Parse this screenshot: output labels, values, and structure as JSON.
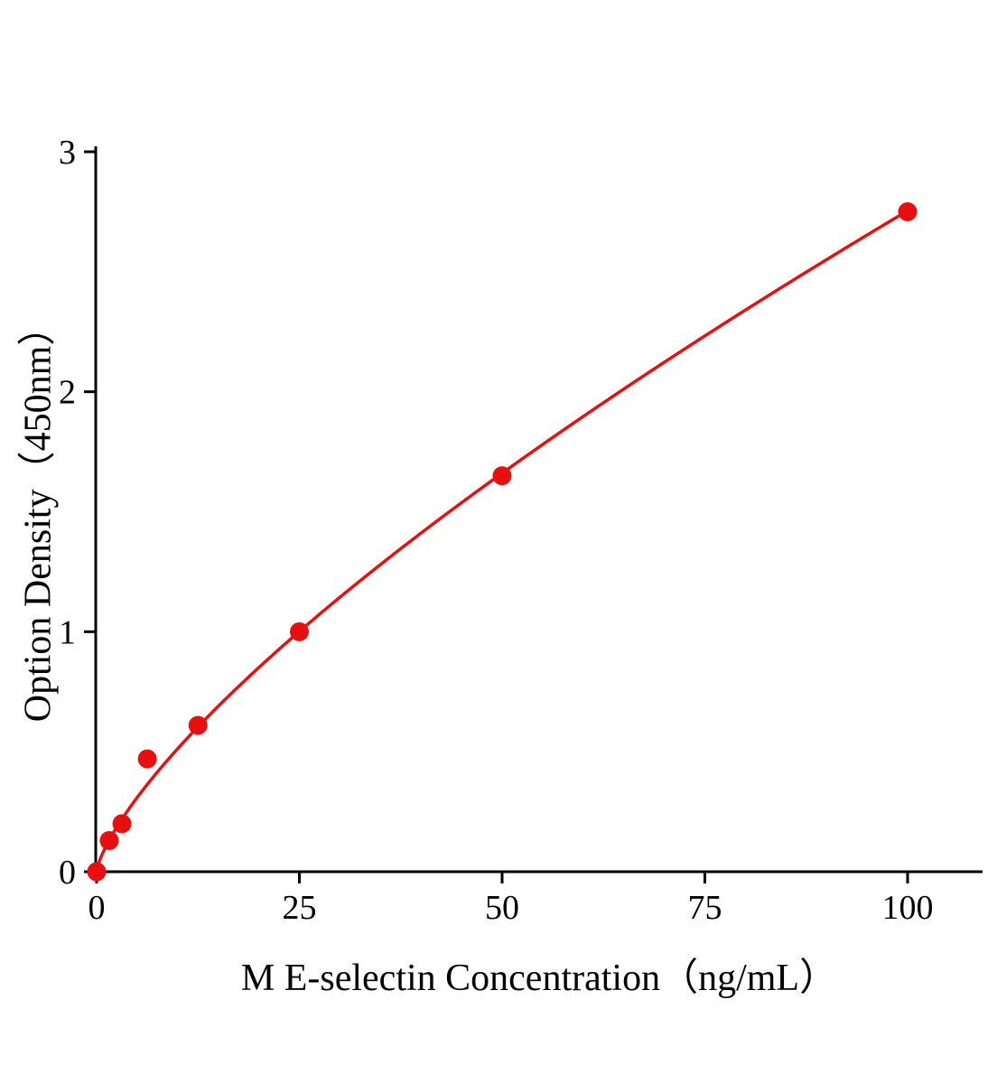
{
  "chart_data": {
    "type": "scatter",
    "title": "",
    "xlabel": "M E-selectin Concentration（ng/mL）",
    "ylabel": "Option Density（450nm）",
    "x_ticks": [
      0,
      25,
      50,
      75,
      100
    ],
    "y_ticks": [
      0,
      1,
      2,
      3
    ],
    "xlim": [
      0,
      109.5
    ],
    "ylim": [
      0,
      3
    ],
    "grid": false,
    "legend": "none",
    "points": [
      {
        "x": 0,
        "y": 0
      },
      {
        "x": 1.56,
        "y": 0.13
      },
      {
        "x": 3.125,
        "y": 0.2
      },
      {
        "x": 6.25,
        "y": 0.47
      },
      {
        "x": 12.5,
        "y": 0.61
      },
      {
        "x": 25,
        "y": 1.0
      },
      {
        "x": 50,
        "y": 1.65
      },
      {
        "x": 100,
        "y": 2.75
      }
    ],
    "fit": {
      "type": "power",
      "a": 0.0955,
      "b": 0.73,
      "x_start": 0,
      "x_end": 100
    },
    "point_color": "#e8100e",
    "line_color": "#e8100e",
    "axis_color": "#000000",
    "background": "#ffffff"
  }
}
